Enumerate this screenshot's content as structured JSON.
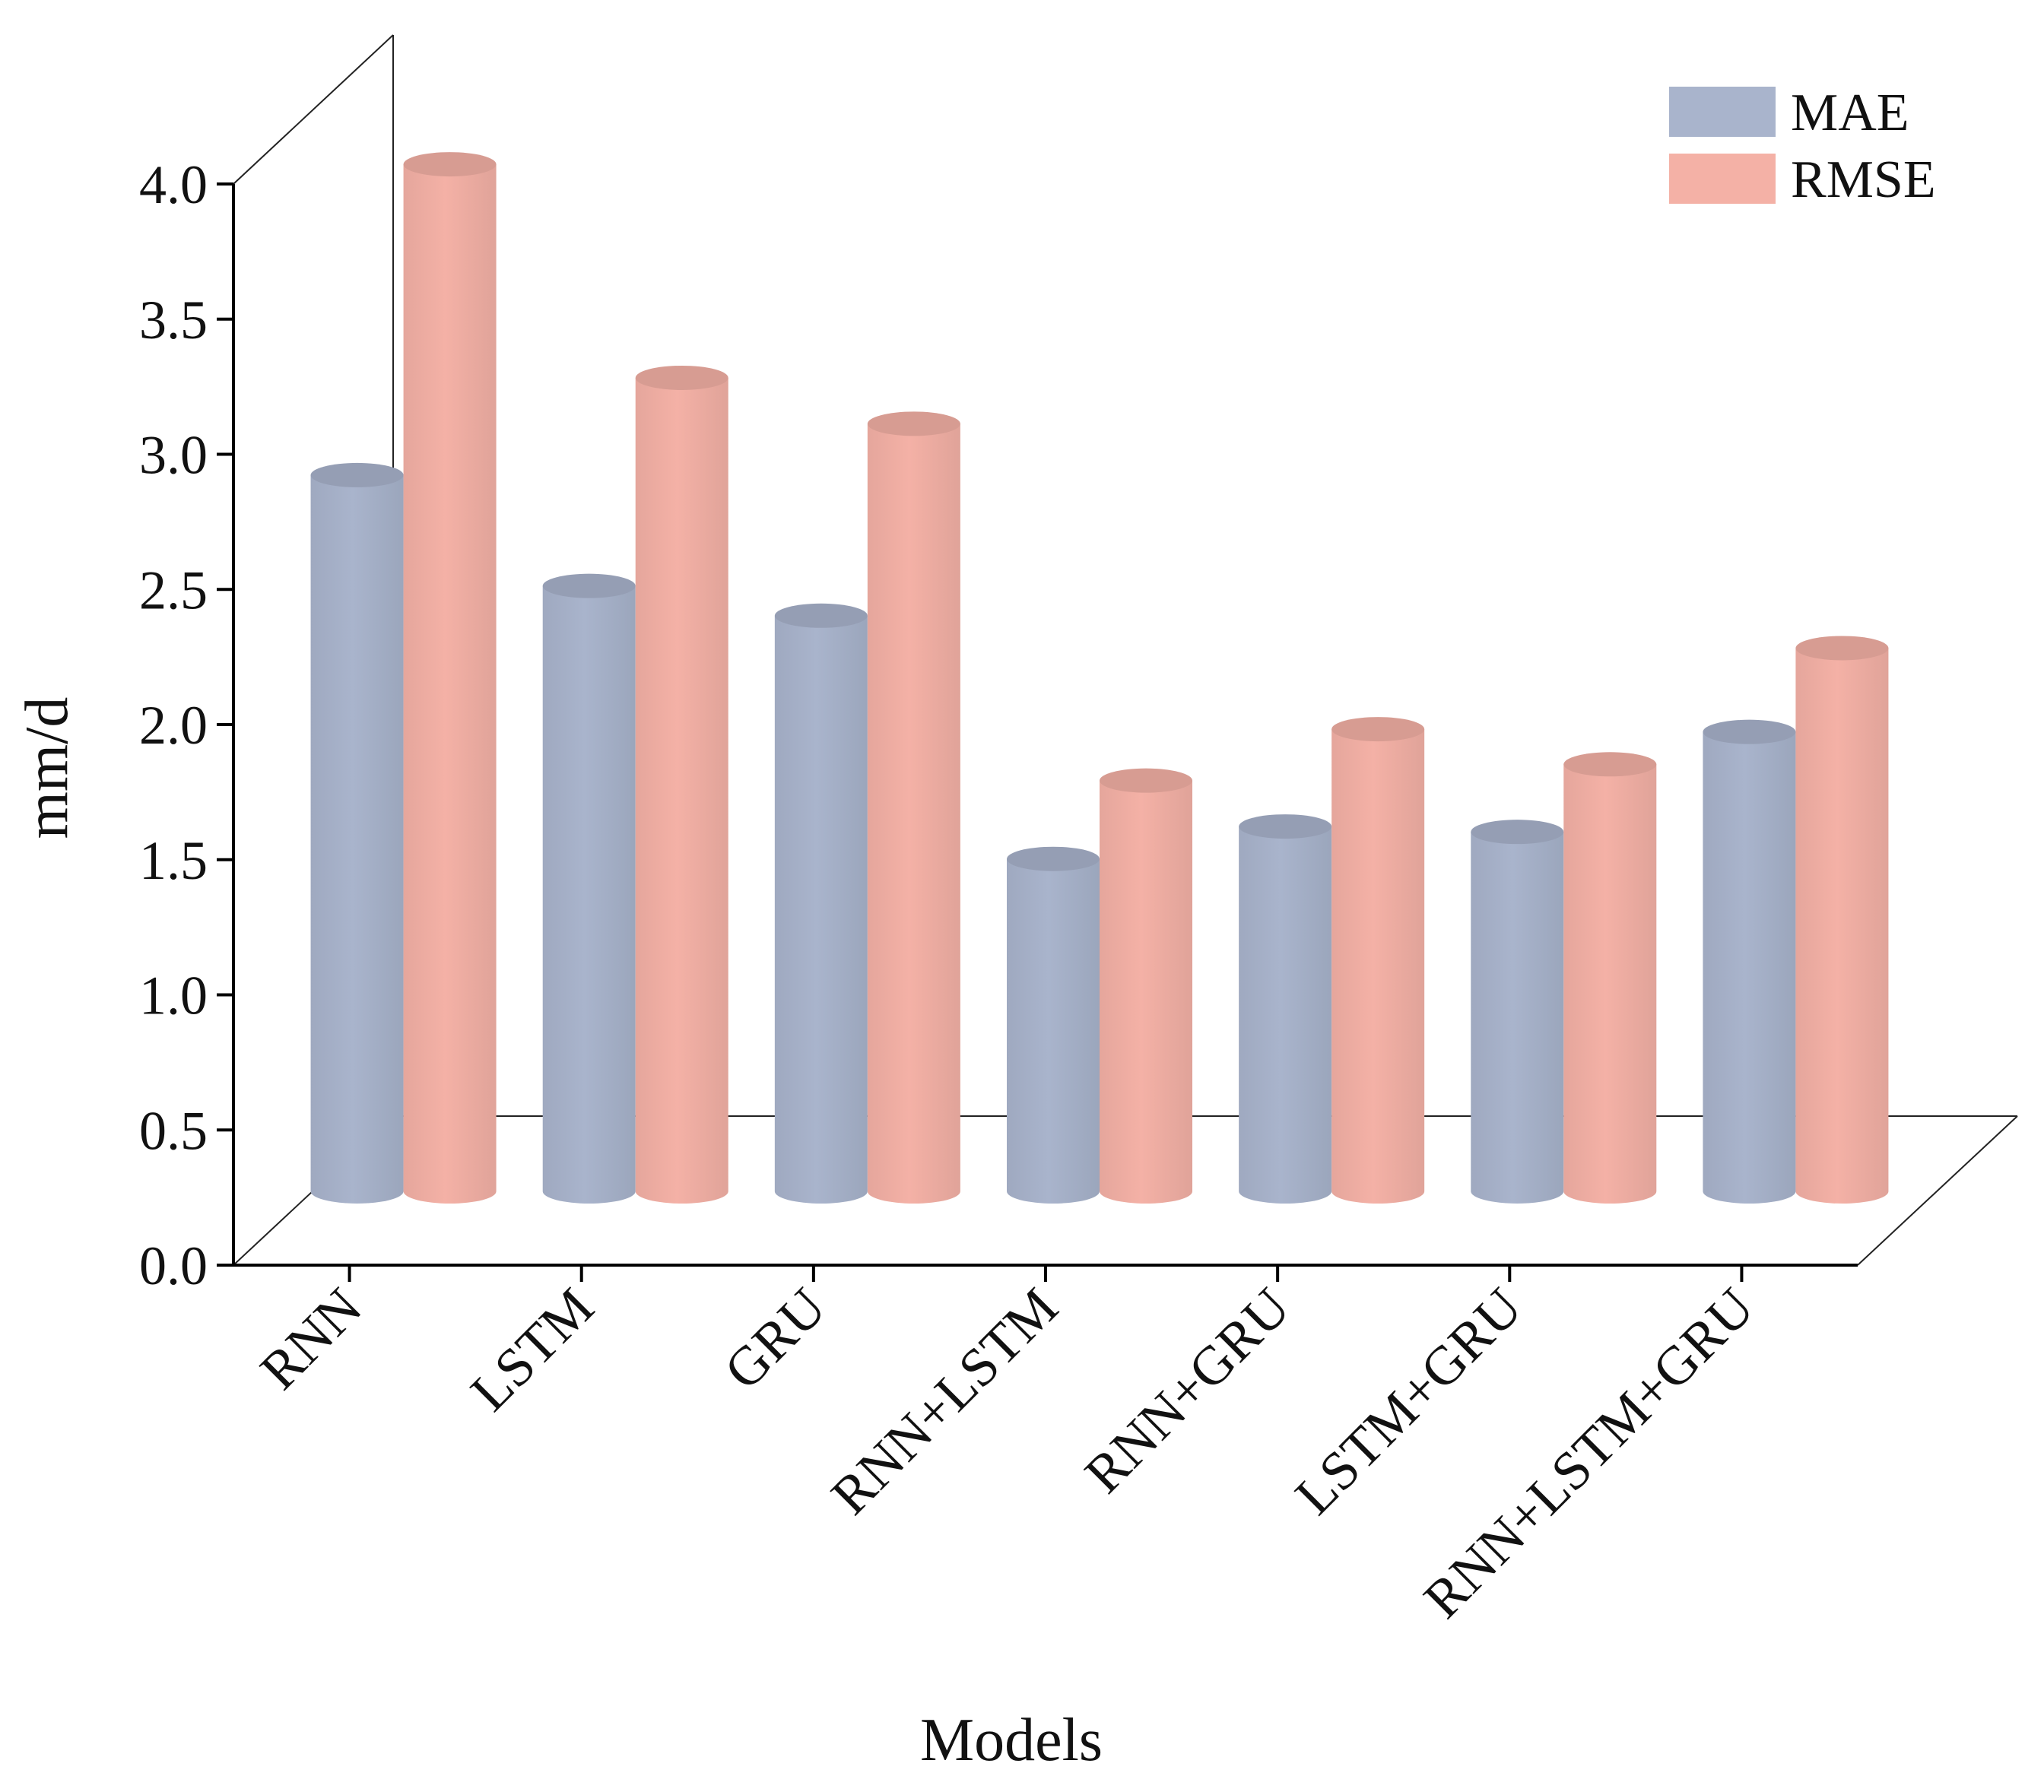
{
  "chart_data": {
    "type": "bar",
    "style": "3d-cylinder",
    "title": "",
    "xlabel": "Models",
    "ylabel": "mm/d",
    "ylim": [
      0,
      4
    ],
    "yticks": [
      "0.0",
      "0.5",
      "1.0",
      "1.5",
      "2.0",
      "2.5",
      "3.0",
      "3.5",
      "4.0"
    ],
    "categories": [
      "RNN",
      "LSTM",
      "GRU",
      "RNN+LSTM",
      "RNN+GRU",
      "LSTM+GRU",
      "RNN+LSTM+GRU"
    ],
    "series": [
      {
        "name": "MAE",
        "color": "#a9b4cc",
        "values": [
          2.65,
          2.24,
          2.13,
          1.23,
          1.35,
          1.33,
          1.7
        ]
      },
      {
        "name": "RMSE",
        "color": "#f4b1a6",
        "values": [
          3.8,
          3.01,
          2.84,
          1.52,
          1.71,
          1.58,
          2.01
        ]
      }
    ],
    "legend_position": "top-right",
    "grid": false
  }
}
